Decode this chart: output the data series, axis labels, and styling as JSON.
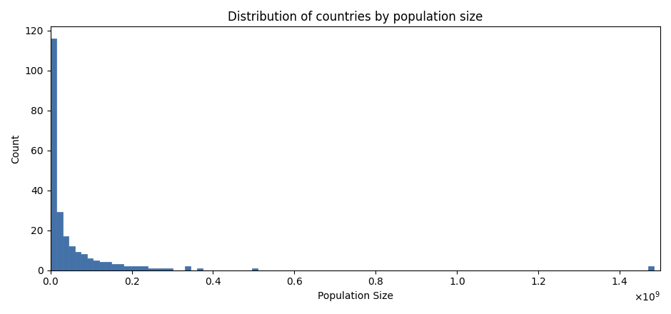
{
  "title": "Distribution of countries by population size",
  "xlabel": "Population Size",
  "ylabel": "Count",
  "bar_color": "#4472a8",
  "bar_edgecolor": "#4472a8",
  "figsize": [
    9.4,
    4.4
  ],
  "dpi": 100,
  "bins": 100,
  "ylim": [
    0,
    122
  ],
  "bin_counts": [
    116,
    29,
    17,
    12,
    9,
    8,
    6,
    5,
    4,
    4,
    3,
    3,
    2,
    2,
    2,
    2,
    1,
    1,
    1,
    1,
    0,
    0,
    2,
    0,
    1,
    0,
    0,
    0,
    0,
    0,
    0,
    0,
    0,
    1,
    0,
    0,
    0,
    0,
    0,
    0,
    0,
    0,
    0,
    0,
    0,
    0,
    0,
    0,
    0,
    0,
    0,
    0,
    0,
    0,
    0,
    0,
    0,
    0,
    0,
    0,
    0,
    0,
    0,
    0,
    0,
    0,
    0,
    0,
    0,
    0,
    0,
    0,
    0,
    0,
    0,
    0,
    0,
    0,
    0,
    0,
    0,
    0,
    0,
    0,
    0,
    0,
    0,
    0,
    0,
    0,
    0,
    0,
    0,
    0,
    0,
    0,
    0,
    0,
    2,
    0
  ]
}
